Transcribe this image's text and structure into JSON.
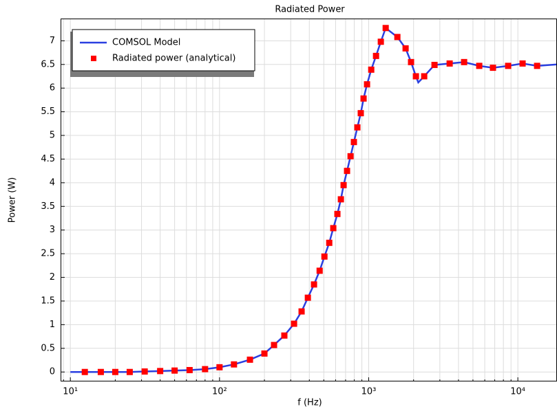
{
  "chart_data": {
    "type": "line",
    "title": "Radiated Power",
    "x_label": "f (Hz)",
    "y_label": "Power (W)",
    "x_scale": "log",
    "grid": true,
    "minor_grid": true,
    "legend_position": "upper left",
    "xlim": [
      8.6,
      18300
    ],
    "ylim": [
      -0.2,
      7.47
    ],
    "xticks": [
      {
        "value": 10,
        "label": "10¹"
      },
      {
        "value": 100,
        "label": "10²"
      },
      {
        "value": 1000,
        "label": "10³"
      },
      {
        "value": 10000,
        "label": "10⁴"
      }
    ],
    "yticks": [
      0,
      0.5,
      1,
      1.5,
      2,
      2.5,
      3,
      3.5,
      4,
      4.5,
      5,
      5.5,
      6,
      6.5,
      7
    ],
    "series": [
      {
        "name": "COMSOL Model",
        "color": "#2a3fe0",
        "style": "line",
        "x": [
          10,
          12.5,
          16,
          20,
          25,
          31.5,
          40,
          50,
          63,
          80,
          100,
          125,
          160,
          200,
          232,
          272,
          316,
          355,
          391,
          430,
          469,
          505,
          544,
          579,
          617,
          651,
          679,
          716,
          756,
          796,
          840,
          885,
          924,
          975,
          1040,
          1120,
          1206,
          1300,
          1557,
          1768,
          1923,
          2073,
          2150,
          2356,
          2762,
          3490,
          4363,
          5510,
          6810,
          8610,
          10760,
          13460,
          18300
        ],
        "values": [
          0,
          0,
          0,
          0,
          0,
          0.01,
          0.02,
          0.03,
          0.04,
          0.06,
          0.1,
          0.16,
          0.26,
          0.39,
          0.57,
          0.77,
          1.02,
          1.28,
          1.57,
          1.85,
          2.14,
          2.44,
          2.73,
          3.04,
          3.34,
          3.65,
          3.95,
          4.25,
          4.56,
          4.86,
          5.17,
          5.47,
          5.78,
          6.08,
          6.39,
          6.68,
          6.98,
          7.27,
          7.08,
          6.84,
          6.55,
          6.25,
          6.12,
          6.25,
          6.49,
          6.52,
          6.55,
          6.47,
          6.43,
          6.47,
          6.52,
          6.47,
          6.5
        ]
      },
      {
        "name": "Radiated power (analytical)",
        "color": "#ff0000",
        "style": "marker",
        "x": [
          12.5,
          16,
          20,
          25,
          31.5,
          40,
          50,
          63,
          80,
          100,
          125,
          160,
          200,
          232,
          272,
          316,
          355,
          391,
          430,
          469,
          505,
          544,
          579,
          617,
          651,
          679,
          716,
          756,
          796,
          840,
          885,
          924,
          975,
          1040,
          1120,
          1206,
          1300,
          1557,
          1768,
          1923,
          2073,
          2356,
          2762,
          3490,
          4363,
          5510,
          6810,
          8610,
          10760,
          13460
        ],
        "values": [
          0,
          0,
          0,
          0,
          0.01,
          0.02,
          0.03,
          0.04,
          0.06,
          0.1,
          0.16,
          0.26,
          0.39,
          0.57,
          0.77,
          1.02,
          1.28,
          1.57,
          1.85,
          2.14,
          2.44,
          2.73,
          3.04,
          3.34,
          3.65,
          3.95,
          4.25,
          4.56,
          4.86,
          5.17,
          5.47,
          5.78,
          6.08,
          6.39,
          6.68,
          6.98,
          7.27,
          7.08,
          6.84,
          6.55,
          6.25,
          6.25,
          6.49,
          6.52,
          6.55,
          6.47,
          6.43,
          6.47,
          6.52,
          6.47
        ]
      }
    ]
  }
}
